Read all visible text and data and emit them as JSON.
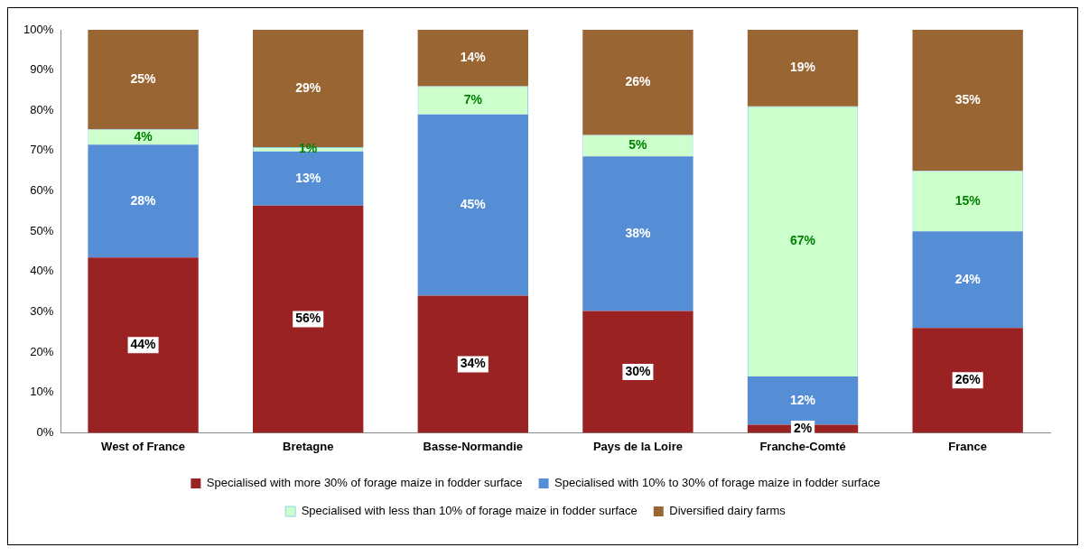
{
  "chart_data": {
    "type": "bar",
    "stacked": true,
    "categories": [
      "West of France",
      "Bretagne",
      "Basse-Normandie",
      "Pays de la Loire",
      "Franche-Comté",
      "France"
    ],
    "series": [
      {
        "name": "Specialised with more 30% of forage maize in fodder surface",
        "color": "#9b2222",
        "values": [
          43.5,
          56.4,
          34,
          30.2,
          2,
          26
        ],
        "value_labels": [
          "44%",
          "56%",
          "34%",
          "30%",
          "2%",
          "26%"
        ]
      },
      {
        "name": "Specialised with 10% to 30% of forage maize in fodder surface",
        "color": "#558ed5",
        "values": [
          28,
          13.4,
          45,
          38.4,
          12,
          24
        ],
        "value_labels": [
          "28%",
          "13%",
          "45%",
          "38%",
          "12%",
          "24%"
        ]
      },
      {
        "name": "Specialised with less than 10% of forage maize in fodder surface",
        "color": "#ccffcc",
        "values": [
          3.8,
          1.1,
          7,
          5.3,
          67,
          15
        ],
        "value_labels": [
          "4%",
          "1%",
          "7%",
          "5%",
          "67%",
          "15%"
        ]
      },
      {
        "name": "Diversified dairy farms",
        "color": "#996633",
        "values": [
          24.7,
          29.1,
          14,
          26.1,
          19,
          35
        ],
        "value_labels": [
          "25%",
          "29%",
          "14%",
          "26%",
          "19%",
          "35%"
        ]
      }
    ],
    "ylim": [
      0,
      100
    ],
    "yticks": [
      {
        "value": 0,
        "label": "0%"
      },
      {
        "value": 10,
        "label": "10%"
      },
      {
        "value": 20,
        "label": "20%"
      },
      {
        "value": 30,
        "label": "30%"
      },
      {
        "value": 40,
        "label": "40%"
      },
      {
        "value": 50,
        "label": "50%"
      },
      {
        "value": 60,
        "label": "60%"
      },
      {
        "value": 70,
        "label": "70%"
      },
      {
        "value": 80,
        "label": "80%"
      },
      {
        "value": 90,
        "label": "90%"
      },
      {
        "value": 100,
        "label": "100%"
      }
    ],
    "grid": false,
    "legend": "bottom"
  }
}
